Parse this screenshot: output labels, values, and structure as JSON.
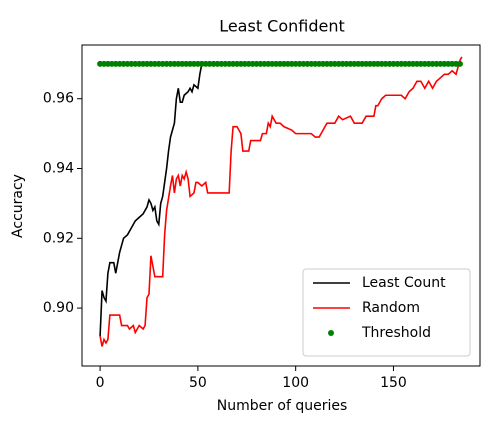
{
  "chart_data": {
    "type": "line",
    "title": "Least Confident",
    "x_label": "Number of queries",
    "y_label": "Accuracy",
    "xlim": [
      -9.25,
      194.25
    ],
    "xticks": [
      0,
      50,
      100,
      150
    ],
    "ylim": [
      0.8834,
      0.9754
    ],
    "yticks": [
      {
        "value": 0.9,
        "label": "0.90"
      },
      {
        "value": 0.92,
        "label": "0.92"
      },
      {
        "value": 0.94,
        "label": "0.94"
      },
      {
        "value": 0.96,
        "label": "0.96"
      }
    ],
    "legend": "lower right",
    "series": [
      {
        "name": "Least Count",
        "color": "#000000",
        "x": [
          0,
          1,
          2,
          3,
          4,
          5,
          7,
          8,
          9,
          10,
          11,
          12,
          14,
          16,
          18,
          20,
          22,
          24,
          25,
          26,
          27,
          28,
          29,
          30,
          31,
          32,
          33,
          34,
          35,
          36,
          37,
          38,
          39,
          40,
          41,
          42,
          43,
          45,
          46,
          47,
          48,
          50,
          51,
          52
        ],
        "values": [
          0.892,
          0.905,
          0.903,
          0.902,
          0.91,
          0.913,
          0.913,
          0.91,
          0.913,
          0.916,
          0.918,
          0.92,
          0.921,
          0.923,
          0.925,
          0.926,
          0.927,
          0.929,
          0.931,
          0.93,
          0.928,
          0.929,
          0.925,
          0.924,
          0.93,
          0.932,
          0.936,
          0.94,
          0.945,
          0.949,
          0.951,
          0.953,
          0.96,
          0.963,
          0.959,
          0.959,
          0.961,
          0.962,
          0.963,
          0.962,
          0.964,
          0.963,
          0.967,
          0.97
        ]
      },
      {
        "name": "Random",
        "color": "#ff0000",
        "x": [
          0,
          1,
          2,
          3,
          4,
          5,
          10,
          11,
          14,
          15,
          17,
          18,
          20,
          22,
          23,
          24,
          25,
          26,
          27,
          28,
          32,
          33,
          34,
          36,
          37,
          38,
          39,
          40,
          41,
          42,
          43,
          44,
          45,
          46,
          48,
          49,
          50,
          52,
          54,
          55,
          66,
          67,
          68,
          70,
          72,
          73,
          76,
          77,
          82,
          83,
          85,
          86,
          87,
          88,
          89,
          90,
          92,
          94,
          98,
          100,
          108,
          110,
          112,
          114,
          116,
          120,
          122,
          124,
          128,
          130,
          134,
          136,
          140,
          141,
          142,
          144,
          146,
          154,
          156,
          158,
          160,
          162,
          164,
          166,
          168,
          170,
          172,
          174,
          176,
          178,
          180,
          182,
          183,
          184,
          185
        ],
        "values": [
          0.892,
          0.889,
          0.891,
          0.89,
          0.891,
          0.898,
          0.898,
          0.895,
          0.895,
          0.894,
          0.895,
          0.893,
          0.895,
          0.894,
          0.895,
          0.903,
          0.904,
          0.915,
          0.912,
          0.909,
          0.909,
          0.921,
          0.928,
          0.935,
          0.938,
          0.933,
          0.937,
          0.938,
          0.935,
          0.938,
          0.937,
          0.939,
          0.937,
          0.932,
          0.933,
          0.936,
          0.936,
          0.935,
          0.936,
          0.933,
          0.933,
          0.945,
          0.952,
          0.952,
          0.95,
          0.945,
          0.945,
          0.948,
          0.948,
          0.95,
          0.95,
          0.953,
          0.952,
          0.955,
          0.954,
          0.953,
          0.953,
          0.952,
          0.951,
          0.95,
          0.95,
          0.949,
          0.949,
          0.951,
          0.953,
          0.953,
          0.955,
          0.954,
          0.955,
          0.953,
          0.953,
          0.955,
          0.955,
          0.958,
          0.958,
          0.96,
          0.961,
          0.961,
          0.96,
          0.962,
          0.963,
          0.965,
          0.965,
          0.963,
          0.965,
          0.963,
          0.965,
          0.966,
          0.967,
          0.967,
          0.968,
          0.967,
          0.969,
          0.971,
          0.972
        ]
      },
      {
        "name": "Threshold",
        "color": "#008000",
        "type": "scatter",
        "x": [
          0,
          2,
          4,
          6,
          8,
          10,
          12,
          14,
          16,
          18,
          20,
          22,
          24,
          26,
          28,
          30,
          32,
          34,
          36,
          38,
          40,
          42,
          44,
          46,
          48,
          50,
          52,
          54,
          56,
          58,
          60,
          62,
          64,
          66,
          68,
          70,
          72,
          74,
          76,
          78,
          80,
          82,
          84,
          86,
          88,
          90,
          92,
          94,
          96,
          98,
          100,
          102,
          104,
          106,
          108,
          110,
          112,
          114,
          116,
          118,
          120,
          122,
          124,
          126,
          128,
          130,
          132,
          134,
          136,
          138,
          140,
          142,
          144,
          146,
          148,
          150,
          152,
          154,
          156,
          158,
          160,
          162,
          164,
          166,
          168,
          170,
          172,
          174,
          176,
          178,
          180,
          182,
          184
        ],
        "values": [
          0.97,
          0.97,
          0.97,
          0.97,
          0.97,
          0.97,
          0.97,
          0.97,
          0.97,
          0.97,
          0.97,
          0.97,
          0.97,
          0.97,
          0.97,
          0.97,
          0.97,
          0.97,
          0.97,
          0.97,
          0.97,
          0.97,
          0.97,
          0.97,
          0.97,
          0.97,
          0.97,
          0.97,
          0.97,
          0.97,
          0.97,
          0.97,
          0.97,
          0.97,
          0.97,
          0.97,
          0.97,
          0.97,
          0.97,
          0.97,
          0.97,
          0.97,
          0.97,
          0.97,
          0.97,
          0.97,
          0.97,
          0.97,
          0.97,
          0.97,
          0.97,
          0.97,
          0.97,
          0.97,
          0.97,
          0.97,
          0.97,
          0.97,
          0.97,
          0.97,
          0.97,
          0.97,
          0.97,
          0.97,
          0.97,
          0.97,
          0.97,
          0.97,
          0.97,
          0.97,
          0.97,
          0.97,
          0.97,
          0.97,
          0.97,
          0.97,
          0.97,
          0.97,
          0.97,
          0.97,
          0.97,
          0.97,
          0.97,
          0.97,
          0.97,
          0.97,
          0.97,
          0.97,
          0.97,
          0.97,
          0.97,
          0.97,
          0.97
        ]
      }
    ]
  }
}
